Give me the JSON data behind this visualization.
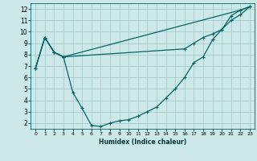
{
  "xlabel": "Humidex (Indice chaleur)",
  "bg_color": "#cde8e8",
  "grid_color": "#a8cccc",
  "line_color": "#006666",
  "xlim": [
    -0.5,
    23.5
  ],
  "ylim": [
    1.5,
    12.5
  ],
  "xticks": [
    0,
    1,
    2,
    3,
    4,
    5,
    6,
    7,
    8,
    9,
    10,
    11,
    12,
    13,
    14,
    15,
    16,
    17,
    18,
    19,
    20,
    21,
    22,
    23
  ],
  "yticks": [
    2,
    3,
    4,
    5,
    6,
    7,
    8,
    9,
    10,
    11,
    12
  ],
  "line1_x": [
    0,
    1,
    2,
    3,
    4,
    5,
    6,
    7,
    8,
    9,
    10,
    11,
    12,
    13,
    14,
    15,
    16,
    17,
    18,
    19,
    20,
    21,
    22,
    23
  ],
  "line1_y": [
    6.8,
    9.5,
    8.2,
    7.8,
    4.7,
    3.3,
    1.8,
    1.7,
    2.0,
    2.2,
    2.3,
    2.6,
    3.0,
    3.4,
    4.2,
    5.0,
    6.0,
    7.3,
    7.8,
    9.3,
    10.2,
    11.4,
    11.9,
    12.2
  ],
  "line2_x": [
    0,
    1,
    2,
    3,
    22,
    23
  ],
  "line2_y": [
    6.8,
    9.5,
    8.2,
    7.8,
    11.9,
    12.2
  ],
  "line3_x": [
    0,
    1,
    2,
    3,
    16,
    17,
    18,
    19,
    20,
    21,
    22,
    23
  ],
  "line3_y": [
    6.8,
    9.5,
    8.2,
    7.8,
    8.5,
    9.0,
    9.5,
    9.8,
    10.2,
    11.0,
    11.5,
    12.2
  ]
}
